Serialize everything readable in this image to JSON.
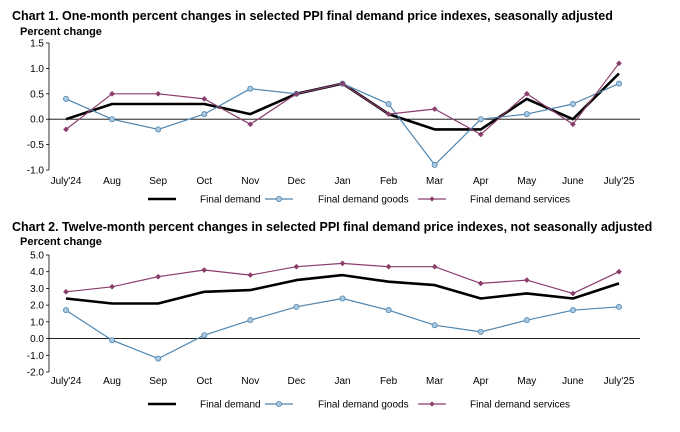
{
  "chart_data": [
    {
      "type": "line",
      "title": "Chart 1. One-month percent changes in selected PPI final demand price indexes, seasonally adjusted",
      "ylabel": "Percent change",
      "xlabel": "",
      "categories": [
        "July'24",
        "Aug",
        "Sep",
        "Oct",
        "Nov",
        "Dec",
        "Jan",
        "Feb",
        "Mar",
        "Apr",
        "May",
        "June",
        "July'25"
      ],
      "ylim": [
        -1.0,
        1.5
      ],
      "yticks": [
        "1.5",
        "1.0",
        "0.5",
        "0.0",
        "-0.5",
        "-1.0"
      ],
      "ytick_values": [
        1.5,
        1.0,
        0.5,
        0.0,
        -0.5,
        -1.0
      ],
      "grid": false,
      "legend_position": "bottom",
      "series": [
        {
          "name": "Final demand",
          "color": "#000000",
          "values": [
            0.0,
            0.3,
            0.3,
            0.3,
            0.1,
            0.5,
            0.7,
            0.1,
            -0.2,
            -0.2,
            0.4,
            0.0,
            0.9
          ]
        },
        {
          "name": "Final demand goods",
          "color": "#4f86b0",
          "values": [
            0.4,
            0.0,
            -0.2,
            0.1,
            0.6,
            0.5,
            0.7,
            0.3,
            -0.9,
            0.0,
            0.1,
            0.3,
            0.7
          ]
        },
        {
          "name": "Final demand services",
          "color": "#8b3d6b",
          "values": [
            -0.2,
            0.5,
            0.5,
            0.4,
            -0.1,
            0.5,
            0.7,
            0.1,
            0.2,
            -0.3,
            0.5,
            -0.1,
            1.1
          ]
        }
      ]
    },
    {
      "type": "line",
      "title": "Chart 2. Twelve-month percent changes in selected PPI final demand price indexes, not seasonally adjusted",
      "ylabel": "Percent change",
      "xlabel": "",
      "categories": [
        "July'24",
        "Aug",
        "Sep",
        "Oct",
        "Nov",
        "Dec",
        "Jan",
        "Feb",
        "Mar",
        "Apr",
        "May",
        "June",
        "July'25"
      ],
      "ylim": [
        -2.0,
        5.0
      ],
      "yticks": [
        "5.0",
        "4.0",
        "3.0",
        "2.0",
        "1.0",
        "0.0",
        "-1.0",
        "-2.0"
      ],
      "ytick_values": [
        5.0,
        4.0,
        3.0,
        2.0,
        1.0,
        0.0,
        -1.0,
        -2.0
      ],
      "grid": false,
      "legend_position": "bottom",
      "series": [
        {
          "name": "Final demand",
          "color": "#000000",
          "values": [
            2.4,
            2.1,
            2.1,
            2.8,
            2.9,
            3.5,
            3.8,
            3.4,
            3.2,
            2.4,
            2.7,
            2.4,
            3.3
          ]
        },
        {
          "name": "Final demand goods",
          "color": "#4f86b0",
          "values": [
            1.7,
            -0.1,
            -1.2,
            0.2,
            1.1,
            1.9,
            2.4,
            1.7,
            0.8,
            0.4,
            1.1,
            1.7,
            1.9
          ]
        },
        {
          "name": "Final demand services",
          "color": "#8b3d6b",
          "values": [
            2.8,
            3.1,
            3.7,
            4.1,
            3.8,
            4.3,
            4.5,
            4.3,
            4.3,
            3.3,
            3.5,
            2.7,
            4.0
          ]
        }
      ]
    }
  ]
}
